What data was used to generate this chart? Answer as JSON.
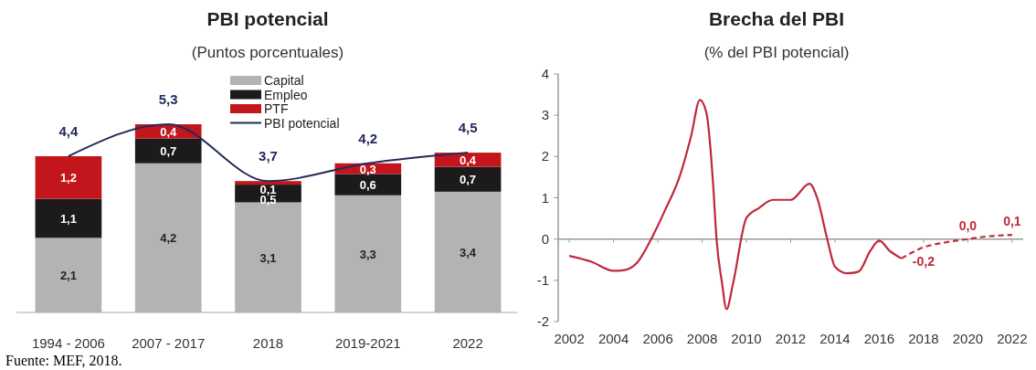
{
  "chart_data": [
    {
      "type": "bar",
      "title": "PBI potencial",
      "subtitle": "(Puntos porcentuales)",
      "categories": [
        "1994 - 2006",
        "2007 - 2017",
        "2018",
        "2019-2021",
        "2022"
      ],
      "stacked": true,
      "tick_labels": "x",
      "legend": "top",
      "annotations": [
        "Fuente: MEF, 2018."
      ],
      "series": [
        {
          "name": "Capital",
          "color": "#b3b3b3",
          "values": [
            2.1,
            4.2,
            3.1,
            3.3,
            3.4
          ],
          "value_labels": [
            "2,1",
            "4,2",
            "3,1",
            "3,3",
            "3,4"
          ]
        },
        {
          "name": "Empleo",
          "color": "#1c1a1b",
          "values": [
            1.1,
            0.7,
            0.5,
            0.6,
            0.7
          ],
          "value_labels": [
            "1,1",
            "0,7",
            "0,5",
            "0,6",
            "0,7"
          ]
        },
        {
          "name": "PTF",
          "color": "#c3161c",
          "values": [
            1.2,
            0.4,
            0.1,
            0.3,
            0.4
          ],
          "value_labels": [
            "1,2",
            "0,4",
            "0,1",
            "0,3",
            "0,4"
          ]
        },
        {
          "name": "PBI potencial",
          "type": "line",
          "color": "#232a5c",
          "values": [
            4.4,
            5.3,
            3.7,
            4.2,
            4.5
          ],
          "value_labels": [
            "4,4",
            "5,3",
            "3,7",
            "4,2",
            "4,5"
          ]
        }
      ]
    },
    {
      "type": "line",
      "title": "Brecha del PBI",
      "subtitle": "(% del PBI potencial)",
      "xlim": [
        2001.5,
        2022.5
      ],
      "xticks": [
        2002,
        2004,
        2006,
        2008,
        2010,
        2012,
        2014,
        2016,
        2018,
        2020,
        2022
      ],
      "ylim": [
        -2,
        4
      ],
      "yticks": [
        -2,
        -1,
        0,
        1,
        2,
        3,
        4
      ],
      "series": [
        {
          "color": "#c0283a",
          "line_style": "solid",
          "x": [
            2002,
            2003,
            2004,
            2004.5,
            2005.1,
            2005.7,
            2006.3,
            2007,
            2007.5,
            2007.9,
            2008.2,
            2008.5,
            2008.65,
            2008.9,
            2009.1,
            2009.4,
            2010,
            2010.56,
            2011.2,
            2012,
            2012.85,
            2013.2,
            2013.65,
            2014,
            2014.55,
            2015.06,
            2015.6,
            2016,
            2016.46,
            2017
          ],
          "values": [
            -0.41,
            -0.55,
            -0.77,
            -0.75,
            -0.55,
            0,
            0.67,
            1.54,
            2.49,
            3.37,
            3.04,
            1.3,
            0,
            -1.07,
            -1.7,
            -1.07,
            0.51,
            0.75,
            0.95,
            0.95,
            1.34,
            0.99,
            0,
            -0.67,
            -0.83,
            -0.79,
            -0.28,
            -0.04,
            -0.28,
            -0.47
          ]
        },
        {
          "color": "#c0283a",
          "line_style": "dashed",
          "x": [
            2017,
            2018,
            2019,
            2020,
            2021,
            2022
          ],
          "values": [
            -0.47,
            -0.2,
            -0.08,
            0.0,
            0.07,
            0.1
          ],
          "value_labels": [
            null,
            "-0,2",
            null,
            "0,0",
            null,
            "0,1"
          ]
        }
      ]
    }
  ]
}
